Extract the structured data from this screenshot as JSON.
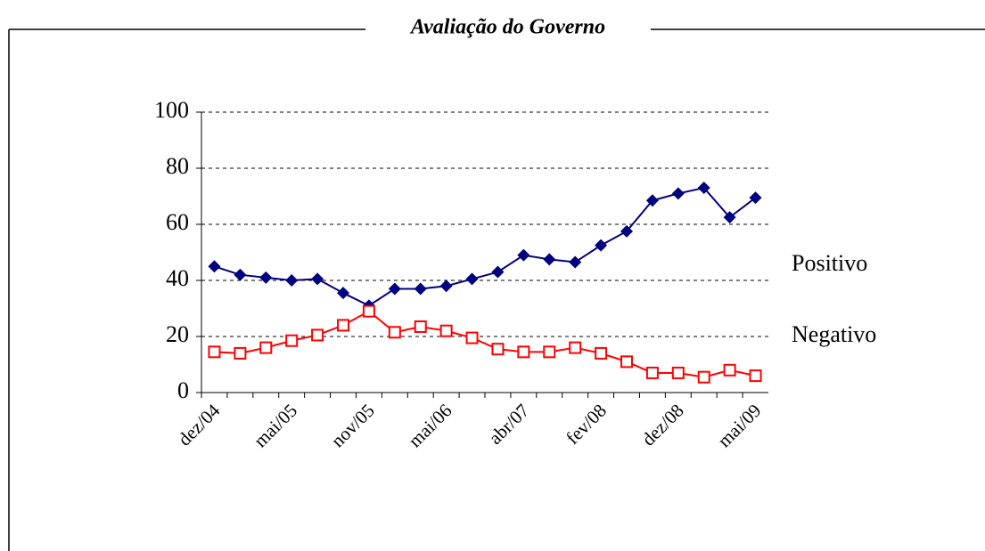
{
  "chart_data": {
    "type": "line",
    "title": "Avaliação do Governo",
    "categories": [
      "dez/04",
      null,
      null,
      "mai/05",
      null,
      null,
      "nov/05",
      null,
      null,
      "mai/06",
      null,
      null,
      "abr/07",
      null,
      null,
      "fev/08",
      null,
      null,
      "dez/08",
      null,
      null,
      "mai/09"
    ],
    "series": [
      {
        "name": "Positivo",
        "color": "#000080",
        "marker": "diamond",
        "values": [
          45,
          42,
          41,
          40,
          40.5,
          35.5,
          31,
          37,
          37,
          38,
          40.5,
          43,
          49,
          47.5,
          46.5,
          52.5,
          57.5,
          68.5,
          71,
          73,
          62.5,
          69.5
        ]
      },
      {
        "name": "Negativo",
        "color": "#ff0000",
        "marker": "square",
        "values": [
          14.5,
          14,
          16,
          18.5,
          20.5,
          24,
          29,
          21.5,
          23.5,
          22,
          19.5,
          15.5,
          14.5,
          14.5,
          16,
          14,
          11,
          7,
          7,
          5.5,
          8,
          6
        ]
      }
    ],
    "ylim": [
      0,
      100
    ],
    "yticks": [
      0,
      20,
      40,
      60,
      80,
      100
    ],
    "grid": true
  }
}
